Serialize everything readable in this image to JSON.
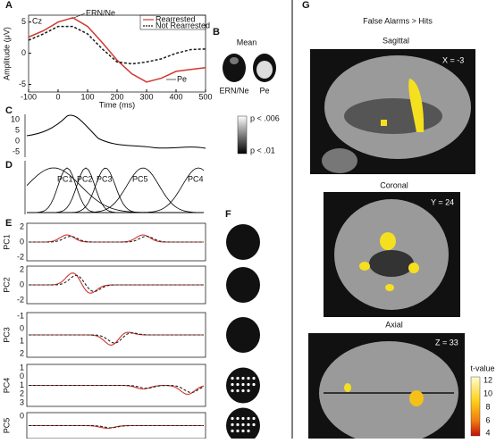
{
  "chart_data": {
    "type": "line",
    "panel": "A",
    "subtitle": "Cz",
    "y_label": "Amplitude (μV)",
    "x_label": "Time (ms)",
    "x": [
      -100,
      -50,
      0,
      50,
      100,
      150,
      200,
      250,
      300,
      350,
      400,
      450,
      500
    ],
    "series": [
      {
        "name": "Rearrested",
        "color": "#d0382f",
        "values": [
          2.6,
          3.6,
          5,
          5.7,
          4.3,
          1.7,
          -1.1,
          -3.3,
          -4.6,
          -4,
          -2.9,
          -2.6,
          -2.3
        ]
      },
      {
        "name": "Not Rearrested",
        "color": "#1a1a1a",
        "dashed": true,
        "values": [
          2.1,
          3.1,
          4.3,
          4.3,
          3.1,
          0.7,
          -1.4,
          -1.7,
          -1.4,
          -0.9,
          0,
          0.6,
          0.7
        ]
      }
    ],
    "xlim": [
      -100,
      500
    ],
    "ylim": [
      -6.2,
      6.1
    ],
    "xticks": [
      -100,
      0,
      100,
      200,
      300,
      400,
      500
    ],
    "yticks": [
      -5,
      0,
      5
    ],
    "annotations": [
      "ERN/Ne",
      "Pe"
    ]
  },
  "panel_b": {
    "label": "B",
    "title": "Mean",
    "heads": [
      "ERN/Ne",
      "Pe"
    ]
  },
  "panel_c": {
    "label": "C",
    "yticks": [
      "10",
      "5",
      "0",
      "-5"
    ]
  },
  "colorbar_p": [
    "p < .006",
    "p < .01"
  ],
  "panel_d": {
    "label": "D",
    "components": [
      "PC1",
      "PC2",
      "PC3",
      "PC5",
      "PC4"
    ]
  },
  "panel_e": {
    "label": "E",
    "rows": [
      {
        "name": "PC1",
        "ticks": [
          "2",
          "0",
          "-2"
        ]
      },
      {
        "name": "PC2",
        "ticks": [
          "2",
          "0",
          "-2"
        ]
      },
      {
        "name": "PC3",
        "ticks": [
          "-1",
          "0",
          "1",
          "2"
        ]
      },
      {
        "name": "PC4",
        "ticks": [
          "1",
          "0",
          "1",
          "2",
          "3"
        ]
      },
      {
        "name": "PC5",
        "ticks": [
          "0"
        ]
      }
    ]
  },
  "panel_f": {
    "label": "F"
  },
  "panel_g": {
    "label": "G",
    "title": "False Alarms > Hits",
    "views": [
      {
        "name": "Sagittal",
        "coord": "X = -3"
      },
      {
        "name": "Coronal",
        "coord": "Y = 24"
      },
      {
        "name": "Axial",
        "coord": "Z = 33"
      }
    ],
    "colorbar": {
      "title": "t-value",
      "ticks": [
        "12",
        "10",
        "8",
        "6",
        "4"
      ]
    }
  }
}
